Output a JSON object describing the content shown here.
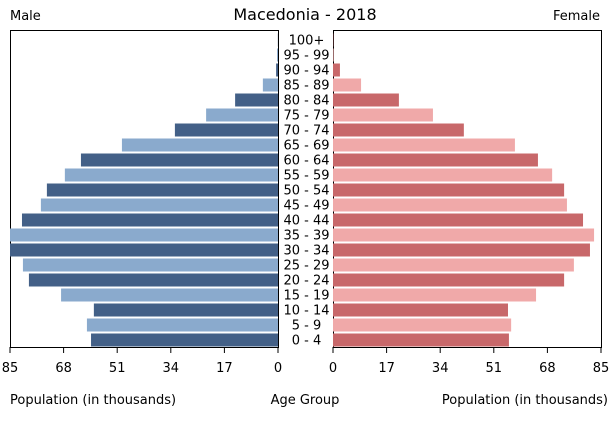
{
  "chart_data": {
    "type": "bar",
    "title": "Macedonia - 2018",
    "left_label": "Male",
    "right_label": "Female",
    "xlabel_left": "Population (in thousands)",
    "xlabel_center": "Age Group",
    "xlabel_right": "Population (in thousands)",
    "xlim": [
      0,
      85
    ],
    "left_ticks": [
      "85",
      "68",
      "51",
      "34",
      "17",
      "0"
    ],
    "right_ticks": [
      "0",
      "17",
      "34",
      "51",
      "68",
      "85"
    ],
    "tick_values": [
      85,
      68,
      51,
      34,
      17,
      0
    ],
    "categories": [
      "100+",
      "95 - 99",
      "90 - 94",
      "85 - 89",
      "80 - 84",
      "75 - 79",
      "70 - 74",
      "65 - 69",
      "60 - 64",
      "55 - 59",
      "50 - 54",
      "45 - 49",
      "40 - 44",
      "35 - 39",
      "30 - 34",
      "25 - 29",
      "20 - 24",
      "15 - 19",
      "10 - 14",
      "5 - 9",
      "0 - 4"
    ],
    "series": [
      {
        "name": "Male",
        "values": [
          0.05,
          0.3,
          0.6,
          4.8,
          13.6,
          22.8,
          32.7,
          49.5,
          62.5,
          67.6,
          73.3,
          75.2,
          81.2,
          85,
          85,
          80.9,
          79,
          68.8,
          58.4,
          60.6,
          59.3
        ]
      },
      {
        "name": "Female",
        "values": [
          0.1,
          0.2,
          2.2,
          8.9,
          20.9,
          31.7,
          41.5,
          57.7,
          65,
          69.5,
          73.3,
          74.2,
          79.3,
          82.8,
          81.5,
          76.4,
          73.3,
          64.4,
          55.5,
          56.5,
          55.8
        ]
      }
    ],
    "colors": {
      "male_dark": "#436087",
      "male_light": "#8aaacd",
      "female_dark": "#c8686a",
      "female_light": "#f0a9a9"
    }
  }
}
